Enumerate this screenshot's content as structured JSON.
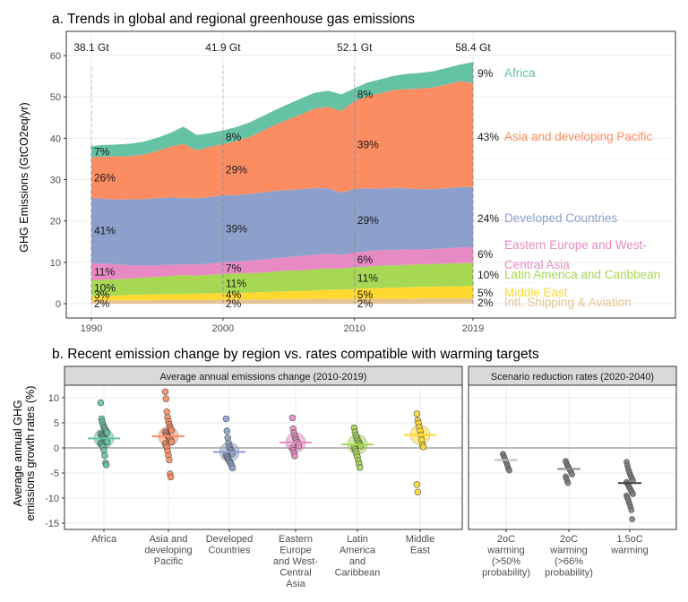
{
  "panel_a": {
    "title": "a. Trends in global and regional greenhouse gas emissions",
    "ylabel": "GHG Emissions (GtCO2eq/yr)"
  },
  "panel_b": {
    "title": "b. Recent emission change by region vs. rates compatible with warming targets",
    "ylabel_lines": [
      "Average annual GHG",
      "emissions growth rates (%)"
    ],
    "strip_left": "Average annual emissions change (2010-2019)",
    "strip_right": "Scenario reduction rates (2020-2040)"
  },
  "chart_data": [
    {
      "type": "area",
      "title": "a. Trends in global and regional greenhouse gas emissions",
      "xlabel": "",
      "ylabel": "GHG Emissions (GtCO2eq/yr)",
      "xlim": [
        1990,
        2019
      ],
      "ylim": [
        0,
        60
      ],
      "x_ticks": [
        1990,
        2000,
        2010,
        2019
      ],
      "y_ticks": [
        0,
        10,
        20,
        30,
        40,
        50,
        60
      ],
      "grid": true,
      "stack_order": [
        "Intl. Shipping & Aviation",
        "Middle East",
        "Latin America and Caribbean",
        "Eastern Europe and West-Central Asia",
        "Developed Countries",
        "Asia and developing Pacific",
        "Africa"
      ],
      "x": [
        1990,
        1991,
        1992,
        1993,
        1994,
        1995,
        1996,
        1997,
        1998,
        1999,
        2000,
        2001,
        2002,
        2003,
        2004,
        2005,
        2006,
        2007,
        2008,
        2009,
        2010,
        2011,
        2012,
        2013,
        2014,
        2015,
        2016,
        2017,
        2018,
        2019
      ],
      "stack_tops": {
        "Intl. Shipping & Aviation": [
          0.8,
          0.8,
          0.8,
          0.8,
          0.8,
          0.9,
          0.9,
          0.9,
          0.9,
          0.9,
          1.0,
          1.0,
          1.0,
          1.0,
          1.1,
          1.1,
          1.1,
          1.2,
          1.2,
          1.1,
          1.2,
          1.2,
          1.2,
          1.2,
          1.2,
          1.3,
          1.3,
          1.3,
          1.3,
          1.3
        ],
        "Middle East": [
          1.9,
          1.9,
          2.0,
          2.1,
          2.2,
          2.3,
          2.3,
          2.4,
          2.4,
          2.5,
          2.6,
          2.6,
          2.7,
          2.8,
          2.9,
          3.0,
          3.1,
          3.2,
          3.4,
          3.4,
          3.6,
          3.7,
          3.8,
          3.9,
          4.0,
          4.1,
          4.1,
          4.2,
          4.2,
          4.3
        ],
        "Latin America and Caribbean": [
          5.6,
          5.8,
          5.9,
          6.1,
          6.3,
          6.5,
          6.7,
          6.9,
          6.8,
          7.0,
          7.2,
          7.3,
          7.4,
          7.5,
          7.8,
          8.0,
          8.1,
          8.3,
          8.5,
          8.5,
          8.8,
          9.0,
          9.2,
          9.3,
          9.4,
          9.5,
          9.6,
          9.7,
          9.8,
          9.9
        ],
        "Eastern Europe and West-Central Asia": [
          9.8,
          9.7,
          9.5,
          9.3,
          9.2,
          9.3,
          9.4,
          9.5,
          9.5,
          9.7,
          10.0,
          10.2,
          10.4,
          10.7,
          11.0,
          11.3,
          11.6,
          11.8,
          12.1,
          11.8,
          12.4,
          12.7,
          12.9,
          13.0,
          13.1,
          13.1,
          13.2,
          13.4,
          13.6,
          13.7
        ],
        "Developed Countries": [
          25.5,
          25.4,
          25.2,
          25.2,
          25.3,
          25.5,
          25.7,
          25.6,
          25.5,
          25.8,
          26.2,
          26.3,
          26.5,
          26.9,
          27.3,
          27.5,
          27.7,
          28.0,
          27.9,
          26.8,
          27.8,
          27.9,
          27.8,
          28.0,
          27.9,
          27.7,
          27.7,
          27.9,
          28.2,
          28.2
        ],
        "Asia and developing Pacific": [
          35.4,
          35.6,
          35.6,
          35.7,
          36.1,
          36.9,
          38.0,
          38.6,
          37.1,
          37.9,
          38.6,
          39.3,
          40.3,
          41.8,
          43.3,
          44.6,
          45.9,
          47.2,
          47.6,
          46.6,
          49.0,
          50.2,
          50.9,
          51.7,
          51.9,
          52.0,
          52.3,
          53.0,
          53.8,
          53.4
        ],
        "Africa": [
          38.1,
          38.4,
          38.5,
          38.7,
          39.2,
          40.1,
          41.3,
          42.8,
          40.8,
          41.2,
          41.9,
          42.7,
          43.8,
          45.3,
          46.9,
          48.3,
          49.7,
          51.0,
          51.5,
          50.6,
          52.1,
          53.5,
          54.3,
          55.1,
          55.6,
          55.8,
          56.2,
          57.0,
          57.8,
          58.4
        ]
      },
      "totals": [
        {
          "x": 1990,
          "label": "38.1 Gt"
        },
        {
          "x": 2000,
          "label": "41.9 Gt"
        },
        {
          "x": 2010,
          "label": "52.1 Gt"
        },
        {
          "x": 2019,
          "label": "58.4 Gt"
        }
      ],
      "shares": {
        "Africa": [
          "7%",
          "8%",
          "8%",
          "9%"
        ],
        "Asia and developing Pacific": [
          "26%",
          "29%",
          "39%",
          "43%"
        ],
        "Developed Countries": [
          "41%",
          "39%",
          "29%",
          "24%"
        ],
        "Eastern Europe and West-Central Asia": [
          "11%",
          "7%",
          "6%",
          "6%"
        ],
        "Latin America and Caribbean": [
          "10%",
          "11%",
          "11%",
          "10%"
        ],
        "Middle East": [
          "3%",
          "4%",
          "5%",
          "5%"
        ],
        "Intl. Shipping & Aviation": [
          "2%",
          "2%",
          "2%",
          "2%"
        ]
      },
      "series_labels": [
        {
          "name": "Africa",
          "lines": [
            "Africa"
          ],
          "color": "#66C2A5"
        },
        {
          "name": "Asia and developing Pacific",
          "lines": [
            "Asia and developing Pacific"
          ],
          "color": "#FC8D62"
        },
        {
          "name": "Developed Countries",
          "lines": [
            "Developed Countries"
          ],
          "color": "#8DA0CB"
        },
        {
          "name": "Eastern Europe and West-Central Asia",
          "lines": [
            "Eastern Europe and West-",
            "Central Asia"
          ],
          "color": "#E78AC3"
        },
        {
          "name": "Latin America and Caribbean",
          "lines": [
            "Latin America and Caribbean"
          ],
          "color": "#A6D854"
        },
        {
          "name": "Middle East",
          "lines": [
            "Middle East"
          ],
          "color": "#FFD92F"
        },
        {
          "name": "Intl. Shipping & Aviation",
          "lines": [
            "Intl. Shipping & Aviation"
          ],
          "color": "#E5C494"
        }
      ]
    },
    {
      "type": "scatter",
      "title": "b. Recent emission change by region vs. rates compatible with warming targets",
      "ylabel": "Average annual GHG emissions growth rates (%)",
      "ylim": [
        -16,
        13
      ],
      "y_ticks": [
        -15,
        -10,
        -5,
        0,
        5,
        10
      ],
      "grid": true,
      "facets": [
        {
          "strip": "Average annual emissions change (2010-2019)",
          "categories": [
            {
              "label": [
                "Africa"
              ],
              "color": "#66C2A5",
              "mean": 1.9,
              "points": [
                9.0,
                5.8,
                5.2,
                4.6,
                4.2,
                3.9,
                3.6,
                3.3,
                3.0,
                2.8,
                2.6,
                2.4,
                2.2,
                2.0,
                1.8,
                1.6,
                1.4,
                1.2,
                1.0,
                0.8,
                0.5,
                0.2,
                -0.5,
                -1.5,
                -3.0,
                -3.4
              ]
            },
            {
              "label": [
                "Asia and",
                "developing",
                "Pacific"
              ],
              "color": "#FC8D62",
              "mean": 2.3,
              "points": [
                11.2,
                9.8,
                7.2,
                6.1,
                5.3,
                4.7,
                4.2,
                3.8,
                3.5,
                3.2,
                2.9,
                2.6,
                2.4,
                2.2,
                2.0,
                1.8,
                1.5,
                1.2,
                0.9,
                0.5,
                0.1,
                -0.6,
                -1.5,
                -2.4,
                -5.2,
                -5.8
              ]
            },
            {
              "label": [
                "Developed",
                "Countries"
              ],
              "color": "#8DA0CB",
              "mean": -0.8,
              "points": [
                5.8,
                3.4,
                2.0,
                1.0,
                0.3,
                -0.2,
                -0.5,
                -0.8,
                -1.1,
                -1.4,
                -1.7,
                -2.0,
                -2.3,
                -2.6,
                -2.9,
                -3.2,
                -3.6,
                -4.0
              ]
            },
            {
              "label": [
                "Eastern",
                "Europe",
                "and West-",
                "Central",
                "Asia"
              ],
              "color": "#E78AC3",
              "mean": 1.1,
              "points": [
                6.0,
                3.8,
                3.0,
                2.4,
                1.9,
                1.5,
                1.1,
                0.8,
                0.4,
                0.0,
                -0.5,
                -1.0,
                -1.6
              ]
            },
            {
              "label": [
                "Latin",
                "America",
                "and",
                "Caribbean"
              ],
              "color": "#A6D854",
              "mean": 0.7,
              "points": [
                4.0,
                3.2,
                2.6,
                2.1,
                1.7,
                1.3,
                1.0,
                0.7,
                0.4,
                0.1,
                -0.3,
                -0.7,
                -1.2,
                -1.8,
                -2.5,
                -3.2,
                -3.9
              ]
            },
            {
              "label": [
                "Middle",
                "East"
              ],
              "color": "#FFD92F",
              "mean": 2.6,
              "points": [
                6.8,
                5.5,
                4.9,
                4.1,
                3.4,
                2.6,
                1.6,
                0.6,
                0.2,
                -7.3,
                -8.8
              ]
            }
          ]
        },
        {
          "strip": "Scenario reduction rates (2020-2040)",
          "categories": [
            {
              "label": [
                "2oC",
                "warming",
                "(>50%",
                "probability)"
              ],
              "color": "#7f7f7f",
              "mean": -2.4,
              "points": [
                -1.2,
                -1.6,
                -2.0,
                -2.4,
                -2.8,
                -3.2,
                -3.7,
                -4.2,
                -4.5
              ]
            },
            {
              "label": [
                "2oC",
                "warming",
                "(>66%",
                "probability)"
              ],
              "color": "#7f7f7f",
              "mean": -4.2,
              "points": [
                -2.6,
                -3.0,
                -3.4,
                -3.7,
                -4.0,
                -4.3,
                -4.6,
                -4.9,
                -5.3,
                -5.7,
                -6.1,
                -6.6,
                -7.0
              ]
            },
            {
              "label": [
                "1.5oC",
                "warming"
              ],
              "color": "#7f7f7f",
              "mean": -7.0,
              "points": [
                -2.8,
                -3.5,
                -4.1,
                -4.6,
                -5.1,
                -5.5,
                -5.9,
                -6.2,
                -6.5,
                -6.8,
                -7.1,
                -7.4,
                -7.7,
                -8.0,
                -8.3,
                -8.6,
                -8.9,
                -9.2,
                -9.5,
                -9.9,
                -10.3,
                -10.8,
                -11.3,
                -11.8,
                -12.4,
                -14.2
              ]
            }
          ]
        }
      ]
    }
  ]
}
